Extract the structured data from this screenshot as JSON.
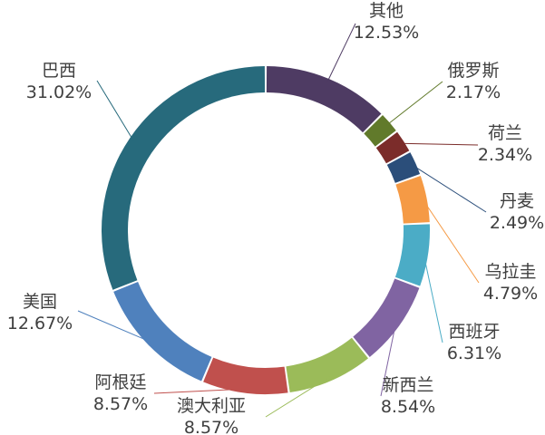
{
  "chart_data": {
    "type": "pie",
    "variant": "donut",
    "title": "",
    "slices": [
      {
        "name": "其他",
        "value": 12.53,
        "label": "12.53%",
        "color": "#4e3b63"
      },
      {
        "name": "俄罗斯",
        "value": 2.17,
        "label": "2.17%",
        "color": "#617a2b"
      },
      {
        "name": "荷兰",
        "value": 2.34,
        "label": "2.34%",
        "color": "#7b2c2a"
      },
      {
        "name": "丹麦",
        "value": 2.49,
        "label": "2.49%",
        "color": "#2b4e7a"
      },
      {
        "name": "乌拉圭",
        "value": 4.79,
        "label": "4.79%",
        "color": "#f59a45"
      },
      {
        "name": "西班牙",
        "value": 6.31,
        "label": "6.31%",
        "color": "#4bacc6"
      },
      {
        "name": "新西兰",
        "value": 8.54,
        "label": "8.54%",
        "color": "#8064a2"
      },
      {
        "name": "澳大利亚",
        "value": 8.57,
        "label": "8.57%",
        "color": "#9bbb59"
      },
      {
        "name": "阿根廷",
        "value": 8.57,
        "label": "8.57%",
        "color": "#c0504d"
      },
      {
        "name": "美国",
        "value": 12.67,
        "label": "12.67%",
        "color": "#4f81bd"
      },
      {
        "name": "巴西",
        "value": 31.02,
        "label": "31.02%",
        "color": "#276a7c"
      }
    ],
    "legend": "none",
    "data_labels": "outside-with-leader-lines"
  }
}
